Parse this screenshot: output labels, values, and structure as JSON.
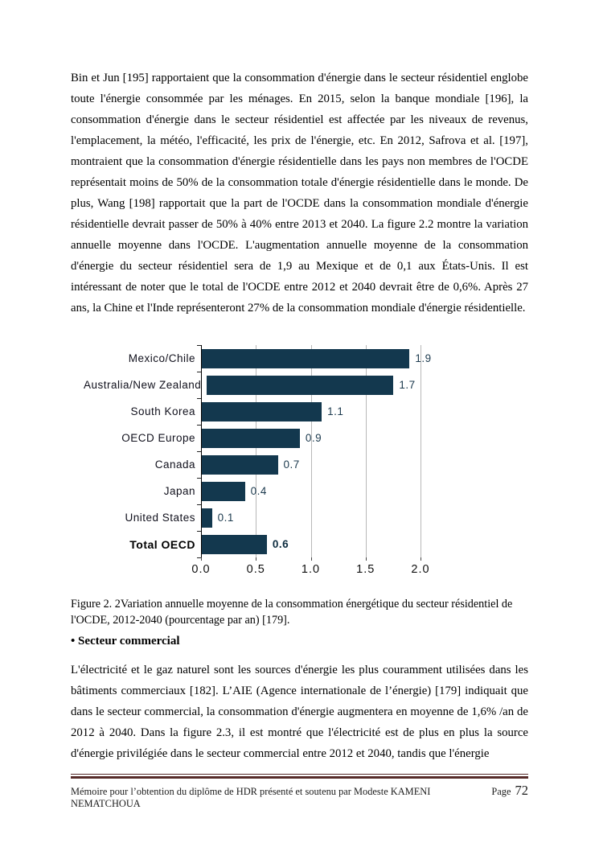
{
  "document": {
    "paragraph1": "Bin et Jun [195]  rapportaient que la consommation d'énergie dans le secteur résidentiel englobe toute l'énergie consommée par les ménages. En 2015, selon la banque mondiale [196], la consommation d'énergie dans le secteur résidentiel est affectée par les niveaux de revenus, l'emplacement, la météo, l'efficacité, les prix de l'énergie, etc.  En 2012, Safrova et al. [197],  montraient que la consommation d'énergie résidentielle dans les pays non membres de l'OCDE représentait moins de 50% de la consommation totale d'énergie résidentielle dans le monde. De plus, Wang [198]  rapportait que la part de l'OCDE dans la consommation mondiale d'énergie résidentielle devrait passer de 50% à 40% entre 2013 et 2040. La figure 2.2 montre la variation annuelle moyenne dans l'OCDE. L'augmentation annuelle moyenne de la consommation d'énergie du secteur résidentiel sera de 1,9 au Mexique et de 0,1 aux États-Unis. Il est intéressant de noter que le total de l'OCDE entre 2012 et 2040 devrait être de 0,6%. Après 27 ans, la Chine et l'Inde représenteront 27% de la consommation mondiale d'énergie résidentielle.",
    "figure_caption": "Figure 2. 2Variation annuelle moyenne de la consommation énergétique du secteur résidentiel de l'OCDE, 2012-2040 (pourcentage par an) [179].",
    "heading": {
      "bullet": "•",
      "label": "Secteur commercial"
    },
    "paragraph2": "L'électricité et le gaz naturel sont les sources d'énergie les plus couramment utilisées dans les bâtiments commerciaux [182]. L’AIE (Agence internationale de l’énergie) [179] indiquait que dans le secteur commercial, la consommation d'énergie augmentera en moyenne de 1,6% /an de 2012 à 2040. Dans la figure 2.3, il est montré que l'électricité est de plus en plus la source d'énergie privilégiée dans le secteur commercial entre 2012 et 2040, tandis que l'énergie",
    "footer": {
      "text": "Mémoire  pour l’obtention du diplôme de HDR présenté et soutenu  par Modeste KAMENI NEMATCHOUA",
      "page_label": "Page",
      "page_number": "72",
      "rule_color": "#552A28"
    }
  },
  "chart_data": {
    "type": "bar",
    "orientation": "horizontal",
    "title": "",
    "xlabel": "",
    "ylabel": "",
    "categories": [
      "Mexico/Chile",
      "Australia/New Zealand",
      "South Korea",
      "OECD Europe",
      "Canada",
      "Japan",
      "United States",
      "Total OECD"
    ],
    "values": [
      1.9,
      1.7,
      1.1,
      0.9,
      0.7,
      0.4,
      0.1,
      0.6
    ],
    "value_labels": [
      "1.9",
      "1.7",
      "1.1",
      "0.9",
      "0.7",
      "0.4",
      "0.1",
      "0.6"
    ],
    "emphasized_category": "Total OECD",
    "x_ticks": [
      0.0,
      0.5,
      1.0,
      1.5,
      2.0
    ],
    "x_tick_labels": [
      "0.0",
      "0.5",
      "1.0",
      "1.5",
      "2.0"
    ],
    "xlim": [
      0,
      2.0
    ],
    "grid": true,
    "legend": false,
    "bar_color": "#13384E",
    "gridline_color": "#B8B8B8",
    "axis_color": "#000000"
  }
}
